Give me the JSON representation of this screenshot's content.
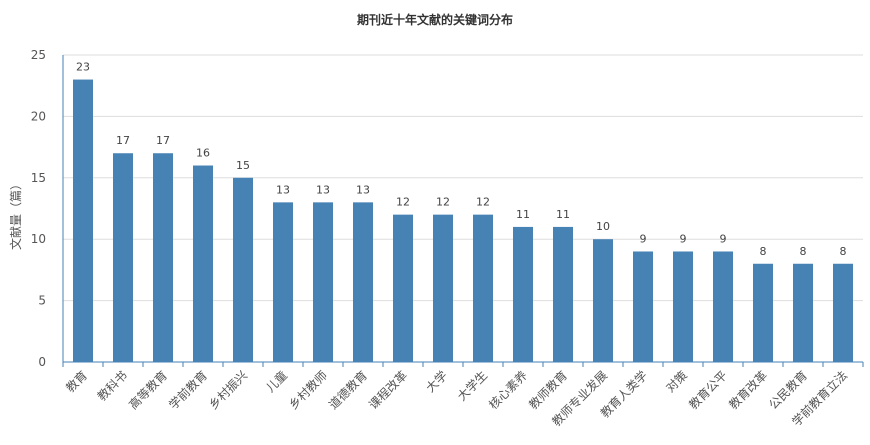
{
  "chart_data": {
    "type": "bar",
    "title": "期刊近十年文献的关键词分布",
    "ylabel": "文献量（篇）",
    "xlabel": "",
    "ylim": [
      0,
      25
    ],
    "yticks": [
      0,
      5,
      10,
      15,
      20,
      25
    ],
    "grid": true,
    "legend": "none",
    "bar_color": "#4682b4",
    "categories": [
      "教育",
      "教科书",
      "高等教育",
      "学前教育",
      "乡村振兴",
      "儿童",
      "乡村教师",
      "道德教育",
      "课程改革",
      "大学",
      "大学生",
      "核心素养",
      "教师教育",
      "教师专业发展",
      "教育人类学",
      "对策",
      "教育公平",
      "教育改革",
      "公民教育",
      "学前教育立法"
    ],
    "values": [
      23,
      17,
      17,
      16,
      15,
      13,
      13,
      13,
      12,
      12,
      12,
      11,
      11,
      10,
      9,
      9,
      9,
      8,
      8,
      8
    ]
  }
}
